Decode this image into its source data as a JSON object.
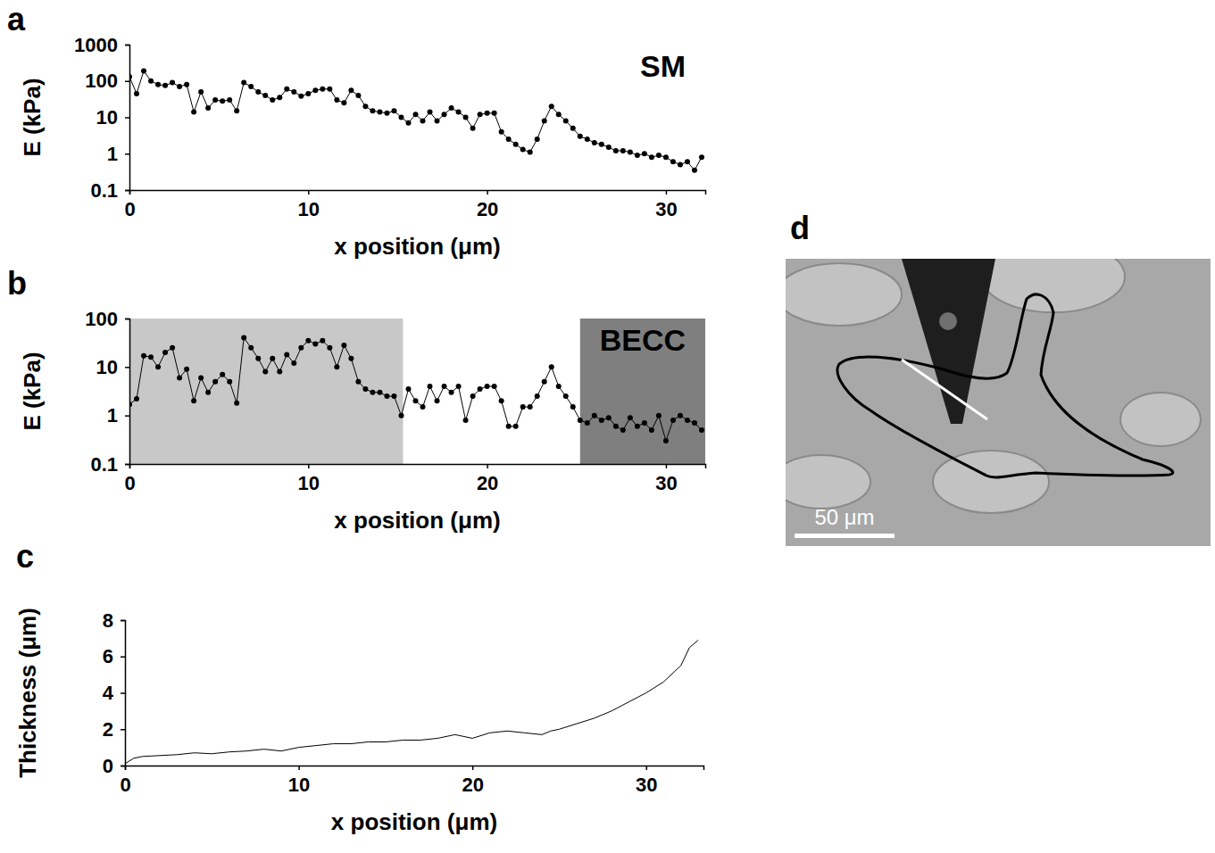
{
  "chart_data": [
    {
      "type": "line",
      "panel": "a",
      "annotation": "SM",
      "marker": "circle",
      "log": "y",
      "xlabel": "x position (μm)",
      "ylabel": "E (kPa)",
      "x": [
        0,
        0.4,
        0.8,
        1.2,
        1.6,
        2,
        2.4,
        2.8,
        3.2,
        3.6,
        4,
        4.4,
        4.8,
        5.2,
        5.6,
        6,
        6.4,
        6.8,
        7.2,
        7.6,
        8,
        8.4,
        8.8,
        9.2,
        9.6,
        10,
        10.4,
        10.8,
        11.2,
        11.6,
        12,
        12.4,
        12.8,
        13.2,
        13.6,
        14,
        14.4,
        14.8,
        15.2,
        15.6,
        16,
        16.4,
        16.8,
        17.2,
        17.6,
        18,
        18.4,
        18.8,
        19.2,
        19.6,
        20,
        20.4,
        20.8,
        21.2,
        21.6,
        22,
        22.4,
        22.8,
        23.2,
        23.6,
        24,
        24.4,
        24.8,
        25.2,
        25.6,
        26,
        26.4,
        26.8,
        27.2,
        27.6,
        28,
        28.4,
        28.8,
        29.2,
        29.6,
        30,
        30.4,
        30.8,
        31.2,
        31.6,
        32
      ],
      "values": [
        130,
        45,
        190,
        100,
        80,
        75,
        90,
        70,
        80,
        14,
        50,
        18,
        30,
        28,
        30,
        15,
        90,
        70,
        50,
        40,
        30,
        35,
        60,
        50,
        38,
        45,
        55,
        60,
        60,
        30,
        25,
        55,
        40,
        20,
        15,
        14,
        13,
        15,
        10,
        7,
        12,
        8,
        14,
        8,
        12,
        18,
        14,
        10,
        5,
        12,
        13,
        13,
        4,
        2.5,
        1.8,
        1.3,
        1.1,
        2.5,
        8,
        20,
        12,
        8,
        5,
        3,
        2.5,
        2,
        1.8,
        1.5,
        1.2,
        1.2,
        1.1,
        0.9,
        1.0,
        0.8,
        0.9,
        0.8,
        0.6,
        0.5,
        0.6,
        0.35,
        0.8
      ],
      "xlim": [
        0,
        32.2
      ],
      "xticks": [
        0,
        10,
        20,
        30
      ],
      "ylim": [
        0.1,
        1000
      ],
      "yticks": [
        0.1,
        1,
        10,
        100,
        1000
      ]
    },
    {
      "type": "line",
      "panel": "b",
      "annotation": "BECC",
      "marker": "circle",
      "log": "y",
      "xlabel": "x position (μm)",
      "ylabel": "E (kPa)",
      "regions": [
        {
          "start": 0,
          "end": 15.3,
          "color": "#c8c8c8"
        },
        {
          "start": 25.2,
          "end": 32.2,
          "color": "#7f7f7f"
        }
      ],
      "x": [
        0,
        0.4,
        0.8,
        1.2,
        1.6,
        2,
        2.4,
        2.8,
        3.2,
        3.6,
        4,
        4.4,
        4.8,
        5.2,
        5.6,
        6,
        6.4,
        6.8,
        7.2,
        7.6,
        8,
        8.4,
        8.8,
        9.2,
        9.6,
        10,
        10.4,
        10.8,
        11.2,
        11.6,
        12,
        12.4,
        12.8,
        13.2,
        13.6,
        14,
        14.4,
        14.8,
        15.2,
        15.6,
        16,
        16.4,
        16.8,
        17.2,
        17.6,
        18,
        18.4,
        18.8,
        19.2,
        19.6,
        20,
        20.4,
        20.8,
        21.2,
        21.6,
        22,
        22.4,
        22.8,
        23.2,
        23.6,
        24,
        24.4,
        24.8,
        25.2,
        25.6,
        26,
        26.4,
        26.8,
        27.2,
        27.6,
        28,
        28.4,
        28.8,
        29.2,
        29.6,
        30,
        30.4,
        30.8,
        31.2,
        31.6,
        32
      ],
      "values": [
        1.7,
        2.2,
        17,
        16,
        10,
        20,
        25,
        6,
        9,
        2,
        6,
        3,
        5,
        7,
        5,
        1.8,
        40,
        25,
        15,
        8,
        15,
        8,
        18,
        12,
        25,
        35,
        30,
        35,
        25,
        10,
        28,
        15,
        5,
        3.5,
        3,
        3,
        2.5,
        2.5,
        1,
        3.5,
        2,
        1.5,
        4,
        2,
        4,
        3,
        4,
        0.8,
        2.5,
        3.5,
        4,
        4,
        2,
        0.6,
        0.6,
        1.5,
        1.5,
        2.5,
        5,
        10,
        4,
        2.5,
        1.5,
        0.8,
        0.7,
        1,
        0.8,
        0.9,
        0.6,
        0.5,
        0.9,
        0.6,
        0.7,
        0.5,
        1,
        0.3,
        0.8,
        1,
        0.8,
        0.7,
        0.5
      ],
      "xlim": [
        0,
        32.2
      ],
      "xticks": [
        0,
        10,
        20,
        30
      ],
      "ylim": [
        0.1,
        100
      ],
      "yticks": [
        0.1,
        1,
        10,
        100
      ]
    },
    {
      "type": "line",
      "panel": "c",
      "marker": "none",
      "xlabel": "x position (μm)",
      "ylabel": "Thickness (μm)",
      "x": [
        0,
        0.5,
        1,
        2,
        3,
        4,
        5,
        6,
        7,
        8,
        9,
        10,
        11,
        12,
        13,
        14,
        15,
        16,
        17,
        18,
        19,
        20,
        21,
        22,
        23,
        24,
        24.5,
        25,
        26,
        27,
        28,
        29,
        30,
        31,
        32,
        32.5,
        33
      ],
      "values": [
        0.1,
        0.4,
        0.5,
        0.55,
        0.6,
        0.7,
        0.65,
        0.75,
        0.8,
        0.9,
        0.8,
        1.0,
        1.1,
        1.2,
        1.2,
        1.3,
        1.3,
        1.4,
        1.4,
        1.5,
        1.7,
        1.5,
        1.8,
        1.9,
        1.8,
        1.7,
        1.9,
        2.0,
        2.3,
        2.6,
        3.0,
        3.5,
        4.0,
        4.6,
        5.5,
        6.5,
        6.9
      ],
      "xlim": [
        0,
        33.3
      ],
      "xticks": [
        0,
        10,
        20,
        30
      ],
      "ylim": [
        0,
        8
      ],
      "yticks": [
        0,
        2,
        4,
        6,
        8
      ]
    },
    {
      "type": "image",
      "panel": "d",
      "scale_bar_label": "50 μm"
    }
  ]
}
